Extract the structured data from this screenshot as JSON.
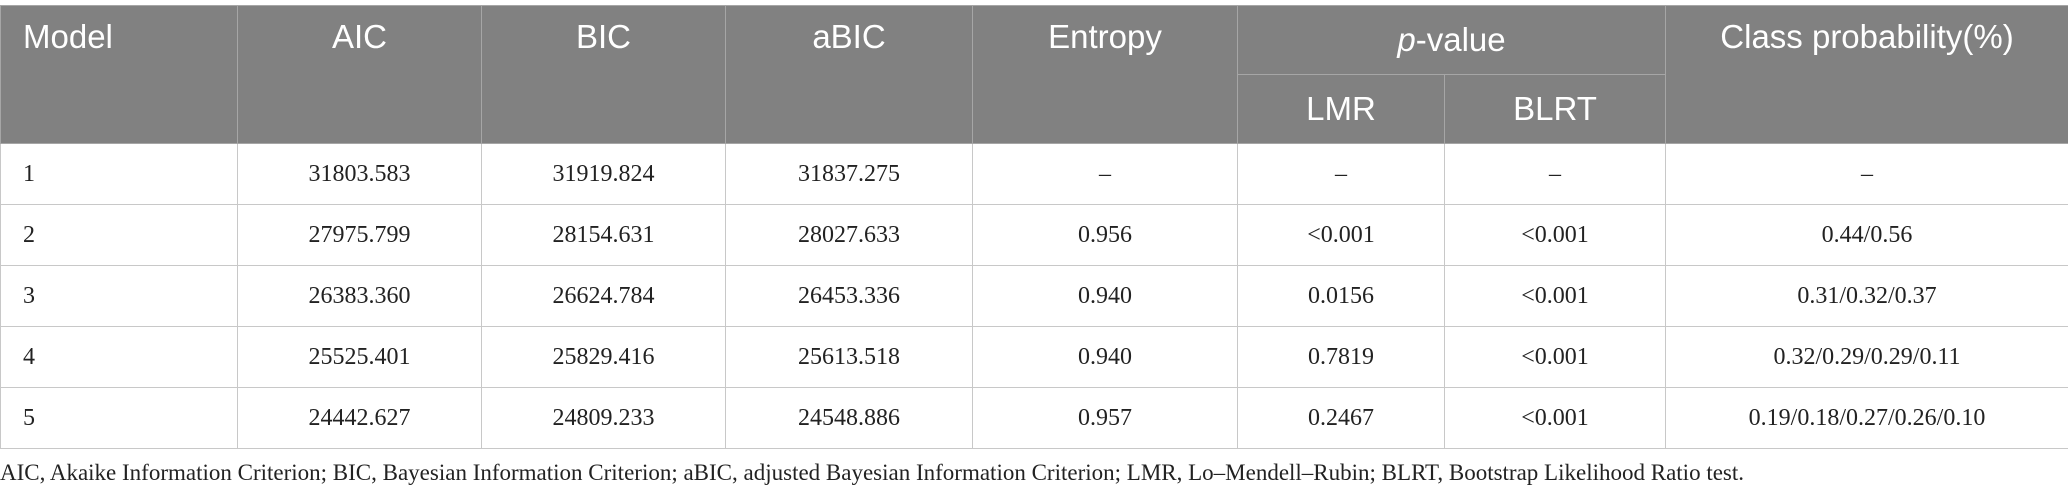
{
  "header": {
    "model": "Model",
    "aic": "AIC",
    "bic": "BIC",
    "abic": "aBIC",
    "entropy": "Entropy",
    "p_value": {
      "italic": "p",
      "rest": "-value"
    },
    "lmr": "LMR",
    "blrt": "BLRT",
    "class_probability": "Class probability(%)"
  },
  "table": {
    "rows": [
      [
        "1",
        "31803.583",
        "31919.824",
        "31837.275",
        "–",
        "–",
        "–",
        "–"
      ],
      [
        "2",
        "27975.799",
        "28154.631",
        "28027.633",
        "0.956",
        "<0.001",
        "<0.001",
        "0.44/0.56"
      ],
      [
        "3",
        "26383.360",
        "26624.784",
        "26453.336",
        "0.940",
        "0.0156",
        "<0.001",
        "0.31/0.32/0.37"
      ],
      [
        "4",
        "25525.401",
        "25829.416",
        "25613.518",
        "0.940",
        "0.7819",
        "<0.001",
        "0.32/0.29/0.29/0.11"
      ],
      [
        "5",
        "24442.627",
        "24809.233",
        "24548.886",
        "0.957",
        "0.2467",
        "<0.001",
        "0.19/0.18/0.27/0.26/0.10"
      ]
    ]
  },
  "footnote": "AIC, Akaike Information Criterion; BIC, Bayesian Information Criterion; aBIC, adjusted Bayesian Information Criterion; LMR, Lo–Mendell–Rubin; BLRT, Bootstrap Likelihood Ratio test."
}
